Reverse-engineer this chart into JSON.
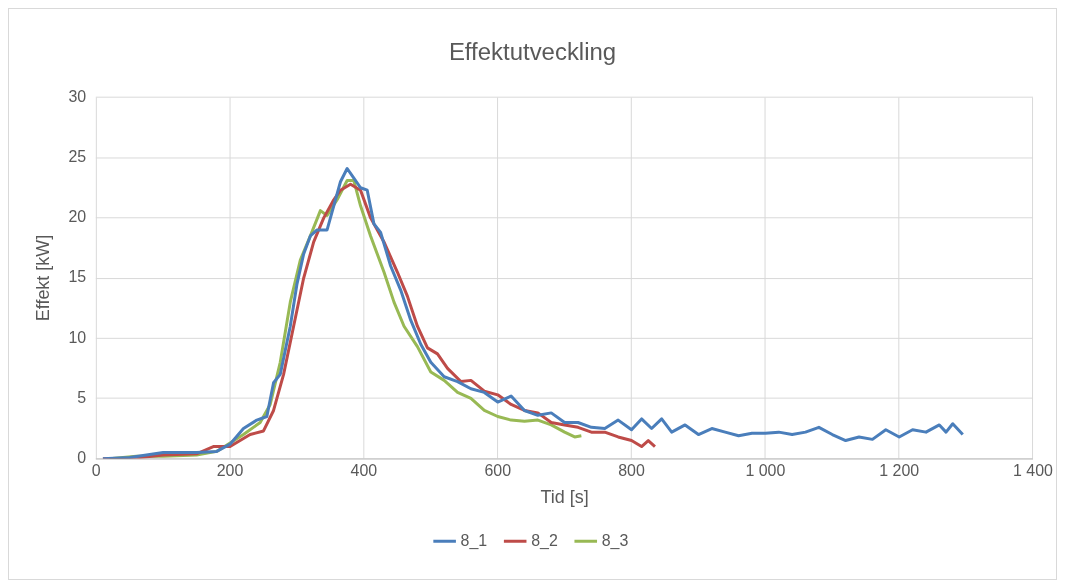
{
  "chart_data": {
    "type": "line",
    "title": "Effektutveckling",
    "xlabel": "Tid [s]",
    "ylabel": "Effekt [kW]",
    "xlim": [
      0,
      1400
    ],
    "xticks": [
      0,
      200,
      400,
      600,
      800,
      {
        "value": 1000,
        "label": "1 000"
      },
      {
        "value": 1200,
        "label": "1 200"
      },
      {
        "value": 1400,
        "label": "1 400"
      }
    ],
    "ylim": [
      0,
      30
    ],
    "yticks": [
      0,
      5,
      10,
      15,
      20,
      25,
      30
    ],
    "grid": true,
    "legend": "bottom",
    "marker": "none",
    "line_style": "solid",
    "series": [
      {
        "name": "8_1",
        "color": "#4a7ebb",
        "x": [
          10,
          50,
          100,
          150,
          180,
          200,
          220,
          240,
          255,
          265,
          275,
          290,
          300,
          310,
          320,
          330,
          345,
          355,
          365,
          375,
          385,
          395,
          405,
          415,
          425,
          440,
          455,
          470,
          485,
          500,
          520,
          540,
          560,
          580,
          600,
          620,
          640,
          660,
          680,
          700,
          720,
          740,
          760,
          780,
          800,
          815,
          830,
          845,
          860,
          880,
          900,
          920,
          940,
          960,
          980,
          1000,
          1020,
          1040,
          1060,
          1080,
          1100,
          1120,
          1140,
          1160,
          1180,
          1200,
          1220,
          1240,
          1260,
          1270,
          1280,
          1295
        ],
        "values": [
          0,
          0.1,
          0.5,
          0.5,
          0.6,
          1.2,
          2.5,
          3.2,
          3.5,
          6.3,
          7,
          11,
          14.5,
          17,
          18.5,
          19,
          19,
          21,
          23,
          24.1,
          23.3,
          22.5,
          22.3,
          19.5,
          18.8,
          16,
          14,
          11.5,
          9.5,
          8,
          6.8,
          6.4,
          5.8,
          5.5,
          4.7,
          5.2,
          4,
          3.6,
          3.8,
          3,
          3,
          2.6,
          2.5,
          3.2,
          2.4,
          3.3,
          2.5,
          3.3,
          2.2,
          2.8,
          2,
          2.5,
          2.2,
          1.9,
          2.1,
          2.1,
          2.2,
          2,
          2.2,
          2.6,
          2,
          1.5,
          1.8,
          1.6,
          2.4,
          1.8,
          2.4,
          2.2,
          2.8,
          2.2,
          2.9,
          2
        ]
      },
      {
        "name": "8_2",
        "color": "#be4b48",
        "x": [
          10,
          50,
          100,
          150,
          175,
          200,
          230,
          250,
          265,
          280,
          295,
          310,
          325,
          340,
          355,
          365,
          380,
          395,
          410,
          430,
          450,
          465,
          480,
          495,
          510,
          525,
          545,
          560,
          580,
          600,
          620,
          640,
          660,
          680,
          700,
          720,
          740,
          760,
          780,
          800,
          815,
          825,
          835
        ],
        "values": [
          0,
          0,
          0.3,
          0.4,
          1,
          1,
          2,
          2.3,
          4,
          7,
          11,
          15,
          18,
          20,
          21.5,
          22.3,
          22.8,
          22.3,
          20,
          18,
          15.5,
          13.5,
          11,
          9.2,
          8.7,
          7.5,
          6.4,
          6.5,
          5.6,
          5.3,
          4.5,
          4,
          3.8,
          3,
          2.8,
          2.6,
          2.2,
          2.2,
          1.8,
          1.5,
          1,
          1.5,
          1
        ]
      },
      {
        "name": "8_3",
        "color": "#98b954",
        "x": [
          20,
          60,
          100,
          150,
          180,
          200,
          220,
          245,
          260,
          275,
          290,
          305,
          320,
          335,
          345,
          360,
          375,
          385,
          395,
          410,
          430,
          445,
          460,
          480,
          500,
          520,
          540,
          560,
          580,
          600,
          620,
          640,
          660,
          680,
          700,
          715,
          725
        ],
        "values": [
          0,
          0.2,
          0.2,
          0.3,
          0.6,
          1.3,
          2,
          3,
          4.5,
          8,
          13,
          16.5,
          18.5,
          20.6,
          20.2,
          21.5,
          23.1,
          23.1,
          21,
          18.5,
          15.5,
          13,
          11,
          9.3,
          7.2,
          6.5,
          5.5,
          5,
          4,
          3.5,
          3.2,
          3.1,
          3.2,
          2.8,
          2.2,
          1.8,
          1.9
        ]
      }
    ]
  }
}
